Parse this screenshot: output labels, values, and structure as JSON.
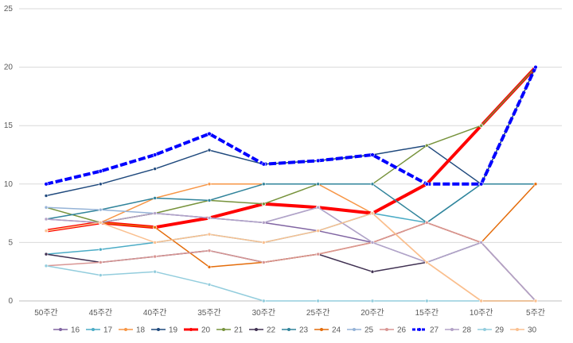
{
  "chart_data": {
    "type": "line",
    "title": "",
    "xlabel": "",
    "ylabel": "",
    "ylim": [
      0,
      25
    ],
    "yticks": [
      0,
      5,
      10,
      15,
      20,
      25
    ],
    "grid": true,
    "legend_position": "bottom",
    "categories": [
      "50주간",
      "45주간",
      "40주간",
      "35주간",
      "30주간",
      "25주간",
      "20주간",
      "15주간",
      "10주간",
      "5주간"
    ],
    "series": [
      {
        "name": "16",
        "color": "#8064a2",
        "values": [
          7,
          6.7,
          7.5,
          7.1,
          6.7,
          6,
          5,
          6.7,
          5,
          0
        ]
      },
      {
        "name": "17",
        "color": "#4bacc6",
        "values": [
          4,
          4.4,
          5,
          5.7,
          5,
          6,
          7.5,
          6.7,
          10,
          10
        ]
      },
      {
        "name": "18",
        "color": "#f79646",
        "values": [
          6,
          6.7,
          8.8,
          10,
          10,
          10,
          7.5,
          3.3,
          0,
          0
        ]
      },
      {
        "name": "19",
        "color": "#1f497d",
        "values": [
          9,
          10,
          11.3,
          12.9,
          11.7,
          12,
          12.5,
          13.3,
          10,
          20
        ]
      },
      {
        "name": "20",
        "color": "#ff0000",
        "width": 4,
        "values": [
          6,
          6.7,
          6.3,
          7.1,
          8.3,
          8,
          7.5,
          10,
          15,
          20
        ]
      },
      {
        "name": "21",
        "color": "#77933c",
        "values": [
          8,
          6.7,
          7.5,
          8.6,
          8.3,
          10,
          10,
          13.3,
          15,
          20
        ]
      },
      {
        "name": "22",
        "color": "#403152",
        "values": [
          4,
          3.3,
          3.8,
          4.3,
          3.3,
          4,
          2.5,
          3.3,
          5,
          0
        ]
      },
      {
        "name": "23",
        "color": "#31849b",
        "values": [
          7,
          7.8,
          8.8,
          8.6,
          10,
          10,
          10,
          6.7,
          10,
          10
        ]
      },
      {
        "name": "24",
        "color": "#e46c0a",
        "values": [
          6,
          6.7,
          6.3,
          2.9,
          3.3,
          4,
          5,
          6.7,
          5,
          10
        ]
      },
      {
        "name": "25",
        "color": "#95b3d7",
        "values": [
          8,
          7.8,
          7.5,
          7.1,
          6.7,
          8,
          5,
          3.3,
          5,
          0
        ]
      },
      {
        "name": "26",
        "color": "#d99694",
        "values": [
          3,
          3.3,
          3.8,
          4.3,
          3.3,
          4,
          5,
          6.7,
          5,
          0
        ]
      },
      {
        "name": "27",
        "color": "#0000ff",
        "width": 4,
        "dashed": true,
        "values": [
          10,
          11.1,
          12.5,
          14.3,
          11.7,
          12,
          12.5,
          10,
          10,
          20
        ]
      },
      {
        "name": "28",
        "color": "#b3a2c7",
        "values": [
          7,
          6.7,
          7.5,
          7.1,
          6.7,
          8,
          5,
          3.3,
          5,
          0
        ]
      },
      {
        "name": "29",
        "color": "#93cddd",
        "values": [
          3,
          2.2,
          2.5,
          1.4,
          0,
          0,
          0,
          0,
          0,
          0
        ]
      },
      {
        "name": "30",
        "color": "#fac090",
        "values": [
          6,
          6.7,
          5,
          5.7,
          5,
          6,
          7.5,
          3.3,
          0,
          0
        ]
      }
    ]
  }
}
